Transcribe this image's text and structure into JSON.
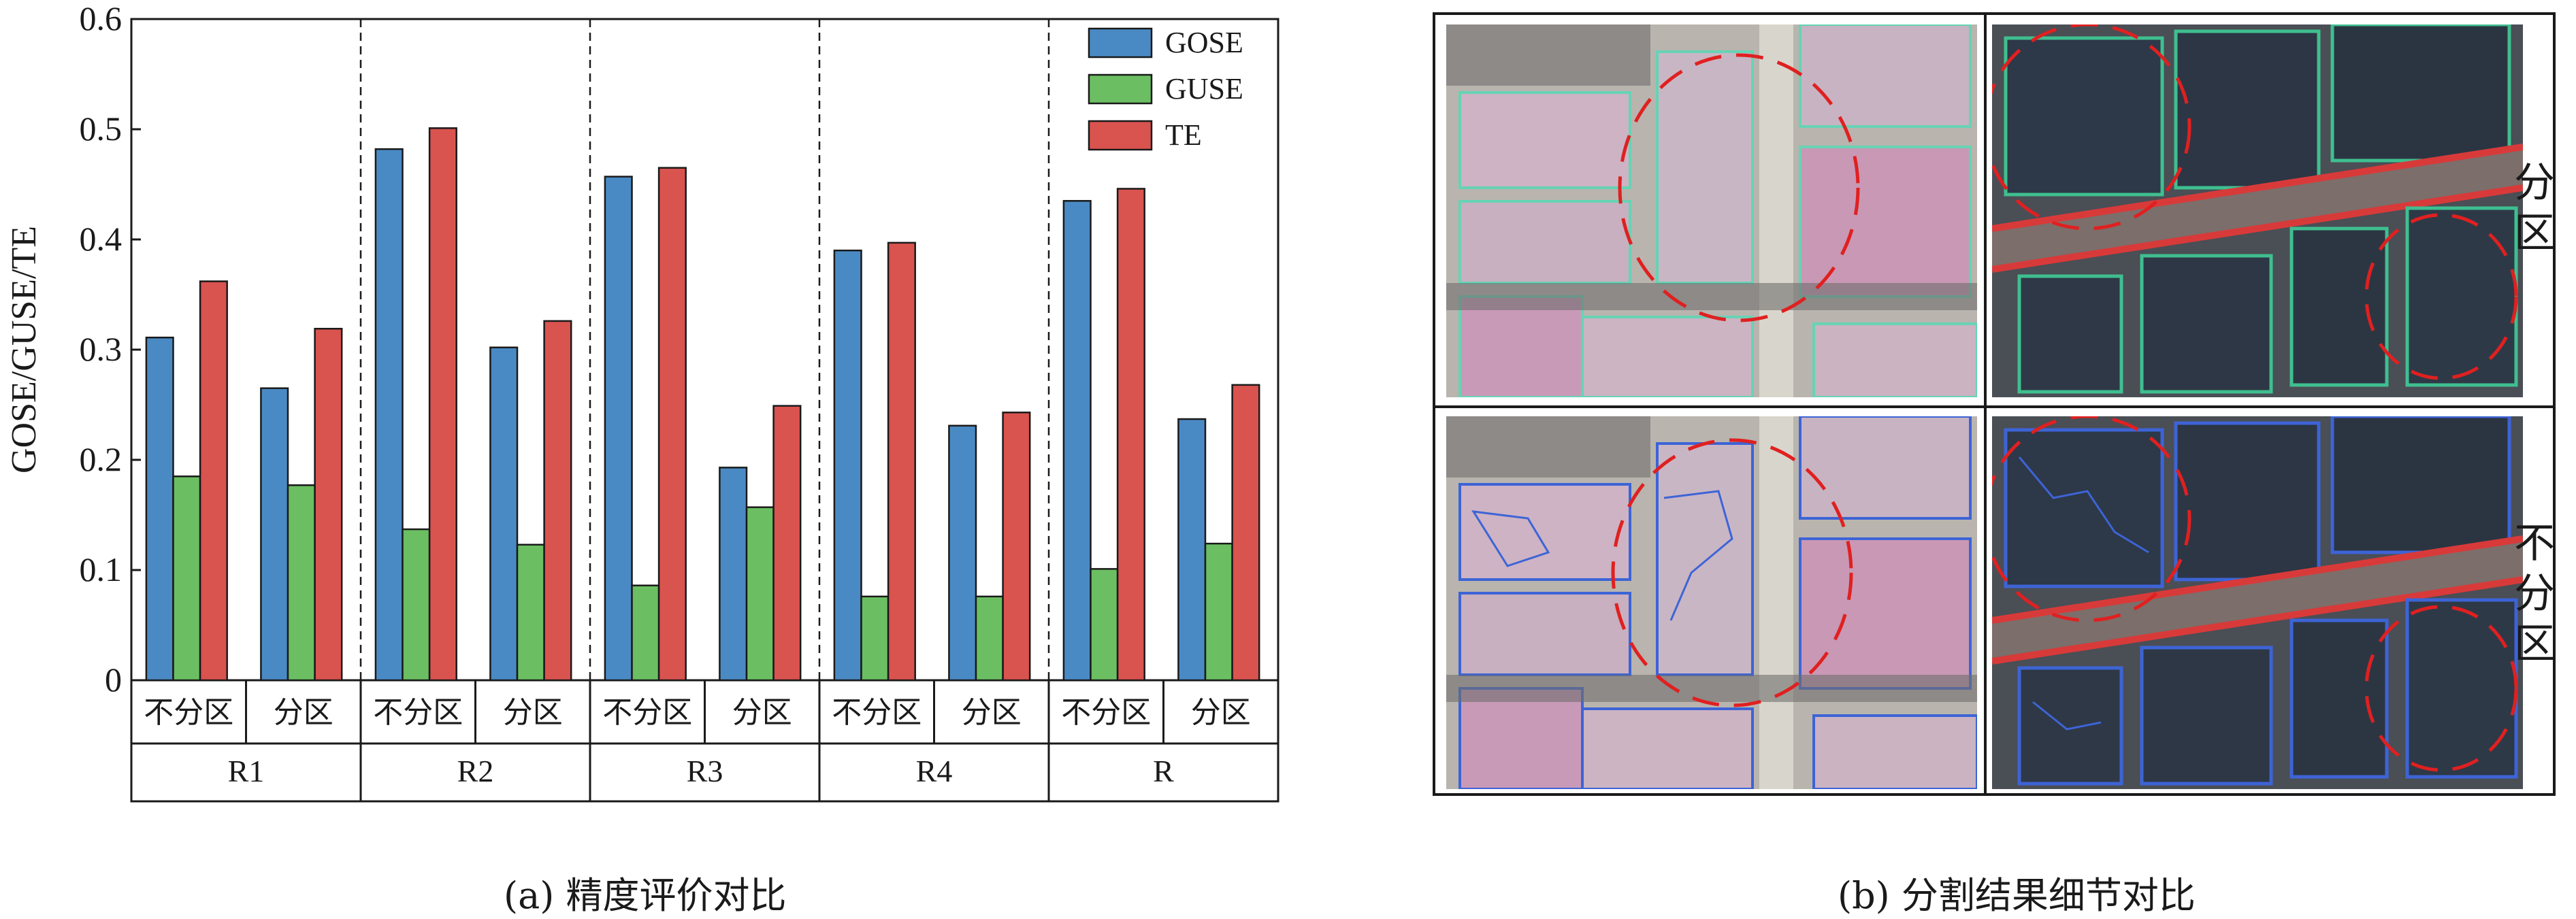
{
  "chart_data": {
    "type": "bar",
    "ylabel": "GOSE/GUSE/TE",
    "ylim": [
      0,
      0.6
    ],
    "yticks": [
      "0",
      "0.1",
      "0.2",
      "0.3",
      "0.4",
      "0.5",
      "0.6"
    ],
    "groups": [
      "R1",
      "R2",
      "R3",
      "R4",
      "R"
    ],
    "subcategories": [
      "不分区",
      "分区"
    ],
    "legend_position": "top-right",
    "series": [
      {
        "name": "GOSE",
        "color": "#4a8ac4",
        "values": [
          0.311,
          0.265,
          0.482,
          0.302,
          0.457,
          0.193,
          0.39,
          0.231,
          0.435,
          0.237
        ]
      },
      {
        "name": "GUSE",
        "color": "#6bbf62",
        "values": [
          0.185,
          0.177,
          0.137,
          0.123,
          0.086,
          0.157,
          0.076,
          0.076,
          0.101,
          0.124
        ]
      },
      {
        "name": "TE",
        "color": "#d9534f",
        "values": [
          0.362,
          0.319,
          0.501,
          0.326,
          0.465,
          0.249,
          0.397,
          0.243,
          0.446,
          0.268
        ]
      }
    ]
  },
  "captions": {
    "a": "(a) 精度评价对比",
    "b": "(b) 分割结果细节对比"
  },
  "panel_b": {
    "row_labels": {
      "top": "分区",
      "bottom": "不分区"
    }
  }
}
